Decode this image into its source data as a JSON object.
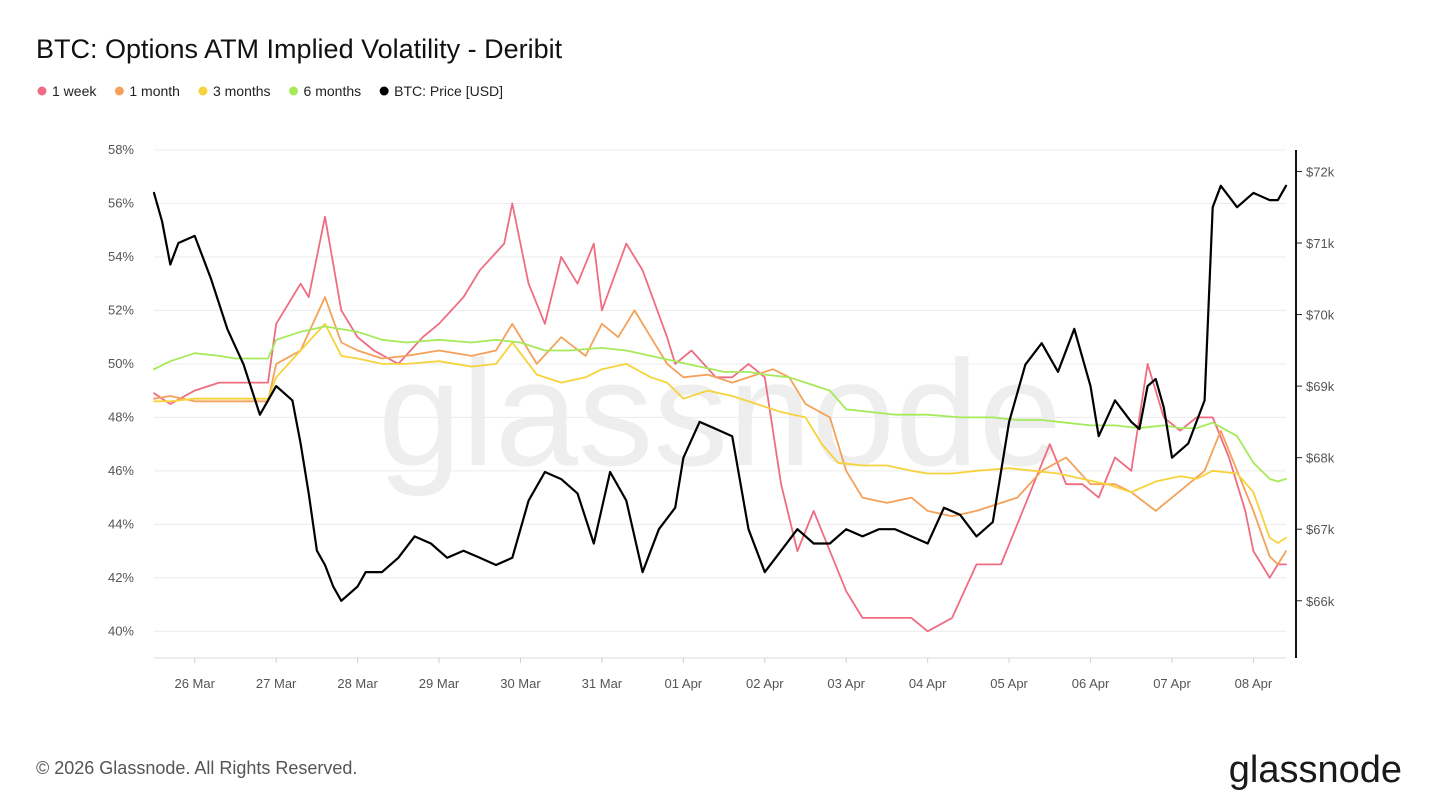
{
  "chart_data": {
    "type": "line",
    "title": "BTC: Options ATM Implied Volatility - Deribit",
    "watermark": "glassnode",
    "copyright": "© 2026 Glassnode. All Rights Reserved.",
    "brand": "glassnode",
    "x_tick_labels": [
      "26 Mar",
      "27 Mar",
      "28 Mar",
      "29 Mar",
      "30 Mar",
      "31 Mar",
      "01 Apr",
      "02 Apr",
      "03 Apr",
      "04 Apr",
      "05 Apr",
      "06 Apr",
      "07 Apr",
      "08 Apr"
    ],
    "xlim_days": [
      25.5,
      39.4
    ],
    "y_left": {
      "ticks": [
        "40%",
        "42%",
        "44%",
        "46%",
        "48%",
        "50%",
        "52%",
        "54%",
        "56%",
        "58%"
      ],
      "lim": [
        39,
        58
      ]
    },
    "y_right": {
      "ticks": [
        "$66k",
        "$67k",
        "$68k",
        "$69k",
        "$70k",
        "$71k",
        "$72k"
      ],
      "lim": [
        65200,
        72300
      ]
    },
    "grid": true,
    "legend_position": "top-left",
    "series": [
      {
        "name": "1 week",
        "color": "#ef6d82",
        "axis": "left",
        "x": [
          25.5,
          25.7,
          26.0,
          26.3,
          26.5,
          26.9,
          27.0,
          27.3,
          27.4,
          27.6,
          27.8,
          28.0,
          28.2,
          28.5,
          28.8,
          29.0,
          29.3,
          29.5,
          29.8,
          29.9,
          30.1,
          30.3,
          30.5,
          30.7,
          30.9,
          31.0,
          31.3,
          31.5,
          31.8,
          31.9,
          32.1,
          32.4,
          32.6,
          32.8,
          33.0,
          33.2,
          33.4,
          33.6,
          33.8,
          34.0,
          34.2,
          34.5,
          34.8,
          35.0,
          35.3,
          35.6,
          35.9,
          36.1,
          36.3,
          36.5,
          36.7,
          36.9,
          37.1,
          37.3,
          37.5,
          37.7,
          37.9,
          38.1,
          38.3,
          38.5,
          38.7,
          38.9,
          39.0,
          39.1,
          39.2,
          39.3,
          39.4
        ],
        "y": [
          48.9,
          48.5,
          49.0,
          49.3,
          49.3,
          49.3,
          51.5,
          53.0,
          52.5,
          55.5,
          52.0,
          51.0,
          50.5,
          50.0,
          51.0,
          51.5,
          52.5,
          53.5,
          54.5,
          56.0,
          53.0,
          51.5,
          54.0,
          53.0,
          54.5,
          52.0,
          54.5,
          53.5,
          51.0,
          50.0,
          50.5,
          49.5,
          49.5,
          50.0,
          49.5,
          45.5,
          43.0,
          44.5,
          43.0,
          41.5,
          40.5,
          40.5,
          40.5,
          40.0,
          40.5,
          42.5,
          42.5,
          44.0,
          45.5,
          47.0,
          45.5,
          45.5,
          45.0,
          46.5,
          46.0,
          50.0,
          48.0,
          47.5,
          48.0,
          48.0,
          46.5,
          44.5,
          43.0,
          42.5,
          42.0,
          42.5,
          42.5
        ]
      },
      {
        "name": "1 month",
        "color": "#f4a25a",
        "axis": "left",
        "x": [
          25.5,
          25.7,
          26.0,
          26.3,
          26.5,
          26.9,
          27.0,
          27.3,
          27.6,
          27.8,
          28.0,
          28.3,
          28.6,
          29.0,
          29.4,
          29.7,
          29.9,
          30.2,
          30.5,
          30.8,
          31.0,
          31.2,
          31.4,
          31.6,
          31.8,
          32.0,
          32.3,
          32.6,
          32.9,
          33.1,
          33.3,
          33.5,
          33.8,
          34.0,
          34.2,
          34.5,
          34.8,
          35.0,
          35.3,
          35.6,
          35.9,
          36.1,
          36.4,
          36.7,
          37.0,
          37.3,
          37.5,
          37.8,
          38.0,
          38.2,
          38.4,
          38.6,
          38.8,
          39.0,
          39.2,
          39.3,
          39.4
        ],
        "y": [
          48.7,
          48.8,
          48.6,
          48.6,
          48.6,
          48.6,
          50.0,
          50.5,
          52.5,
          50.8,
          50.5,
          50.2,
          50.3,
          50.5,
          50.3,
          50.5,
          51.5,
          50.0,
          51.0,
          50.3,
          51.5,
          51.0,
          52.0,
          51.0,
          50.0,
          49.5,
          49.6,
          49.3,
          49.6,
          49.8,
          49.5,
          48.5,
          48.0,
          46.0,
          45.0,
          44.8,
          45.0,
          44.5,
          44.3,
          44.5,
          44.8,
          45.0,
          46.0,
          46.5,
          45.5,
          45.5,
          45.2,
          44.5,
          45.0,
          45.5,
          46.0,
          47.5,
          46.0,
          44.5,
          42.8,
          42.5,
          43.0
        ]
      },
      {
        "name": "3 months",
        "color": "#f6d33c",
        "axis": "left",
        "x": [
          25.5,
          25.7,
          26.0,
          26.3,
          26.5,
          26.9,
          27.0,
          27.3,
          27.6,
          27.8,
          28.0,
          28.3,
          28.6,
          29.0,
          29.4,
          29.7,
          29.9,
          30.2,
          30.5,
          30.8,
          31.0,
          31.3,
          31.6,
          31.8,
          32.0,
          32.3,
          32.6,
          32.9,
          33.2,
          33.5,
          33.7,
          33.9,
          34.2,
          34.5,
          34.8,
          35.0,
          35.3,
          35.6,
          36.0,
          36.3,
          36.6,
          36.9,
          37.2,
          37.5,
          37.8,
          38.1,
          38.3,
          38.5,
          38.8,
          39.0,
          39.2,
          39.3,
          39.4
        ],
        "y": [
          48.6,
          48.6,
          48.7,
          48.7,
          48.7,
          48.7,
          49.5,
          50.5,
          51.5,
          50.3,
          50.2,
          50.0,
          50.0,
          50.1,
          49.9,
          50.0,
          50.8,
          49.6,
          49.3,
          49.5,
          49.8,
          50.0,
          49.5,
          49.3,
          48.7,
          49.0,
          48.8,
          48.5,
          48.2,
          48.0,
          47.0,
          46.3,
          46.2,
          46.2,
          46.0,
          45.9,
          45.9,
          46.0,
          46.1,
          46.0,
          45.9,
          45.7,
          45.5,
          45.2,
          45.6,
          45.8,
          45.7,
          46.0,
          45.9,
          45.2,
          43.5,
          43.3,
          43.5
        ]
      },
      {
        "name": "6 months",
        "color": "#a6ea5a",
        "axis": "left",
        "x": [
          25.5,
          25.7,
          26.0,
          26.3,
          26.5,
          26.9,
          27.0,
          27.3,
          27.6,
          27.8,
          28.0,
          28.3,
          28.6,
          29.0,
          29.4,
          29.7,
          30.0,
          30.3,
          30.6,
          31.0,
          31.3,
          31.6,
          31.9,
          32.2,
          32.5,
          32.8,
          33.0,
          33.3,
          33.5,
          33.8,
          34.0,
          34.3,
          34.6,
          35.0,
          35.4,
          35.8,
          36.1,
          36.4,
          36.7,
          37.0,
          37.3,
          37.6,
          37.9,
          38.1,
          38.3,
          38.5,
          38.8,
          39.0,
          39.2,
          39.3,
          39.4
        ],
        "y": [
          49.8,
          50.1,
          50.4,
          50.3,
          50.2,
          50.2,
          50.9,
          51.2,
          51.4,
          51.3,
          51.2,
          50.9,
          50.8,
          50.9,
          50.8,
          50.9,
          50.8,
          50.5,
          50.5,
          50.6,
          50.5,
          50.3,
          50.1,
          49.9,
          49.7,
          49.7,
          49.6,
          49.5,
          49.3,
          49.0,
          48.3,
          48.2,
          48.1,
          48.1,
          48.0,
          48.0,
          47.9,
          47.9,
          47.8,
          47.7,
          47.7,
          47.6,
          47.7,
          47.6,
          47.6,
          47.8,
          47.3,
          46.3,
          45.7,
          45.6,
          45.7
        ]
      },
      {
        "name": "BTC: Price [USD]",
        "color": "#000000",
        "axis": "right",
        "x": [
          25.5,
          25.6,
          25.7,
          25.8,
          26.0,
          26.2,
          26.4,
          26.6,
          26.8,
          27.0,
          27.2,
          27.3,
          27.4,
          27.5,
          27.6,
          27.7,
          27.8,
          28.0,
          28.1,
          28.3,
          28.5,
          28.7,
          28.9,
          29.1,
          29.3,
          29.5,
          29.7,
          29.9,
          30.1,
          30.3,
          30.5,
          30.7,
          30.9,
          31.1,
          31.3,
          31.5,
          31.7,
          31.9,
          32.0,
          32.2,
          32.4,
          32.6,
          32.8,
          33.0,
          33.2,
          33.4,
          33.6,
          33.8,
          34.0,
          34.2,
          34.4,
          34.6,
          34.8,
          35.0,
          35.2,
          35.4,
          35.6,
          35.8,
          36.0,
          36.2,
          36.4,
          36.6,
          36.8,
          37.0,
          37.1,
          37.3,
          37.5,
          37.6,
          37.7,
          37.8,
          37.9,
          38.0,
          38.2,
          38.4,
          38.5,
          38.6,
          38.8,
          39.0,
          39.2,
          39.3,
          39.4
        ],
        "y": [
          71.7,
          71.3,
          70.7,
          71.0,
          71.1,
          70.5,
          69.8,
          69.3,
          68.6,
          69.0,
          68.8,
          68.2,
          67.5,
          66.7,
          66.5,
          66.2,
          66.0,
          66.2,
          66.4,
          66.4,
          66.6,
          66.9,
          66.8,
          66.6,
          66.7,
          66.6,
          66.5,
          66.6,
          67.4,
          67.8,
          67.7,
          67.5,
          66.8,
          67.8,
          67.4,
          66.4,
          67.0,
          67.3,
          68.0,
          68.5,
          68.4,
          68.3,
          67.0,
          66.4,
          66.7,
          67.0,
          66.8,
          66.8,
          67.0,
          66.9,
          67.0,
          67.0,
          66.9,
          66.8,
          67.3,
          67.2,
          66.9,
          67.1,
          68.5,
          69.3,
          69.6,
          69.2,
          69.8,
          69.0,
          68.3,
          68.8,
          68.5,
          68.4,
          69.0,
          69.1,
          68.7,
          68.0,
          68.2,
          68.8,
          71.5,
          71.8,
          71.5,
          71.7,
          71.6,
          71.6,
          71.8
        ]
      }
    ]
  }
}
